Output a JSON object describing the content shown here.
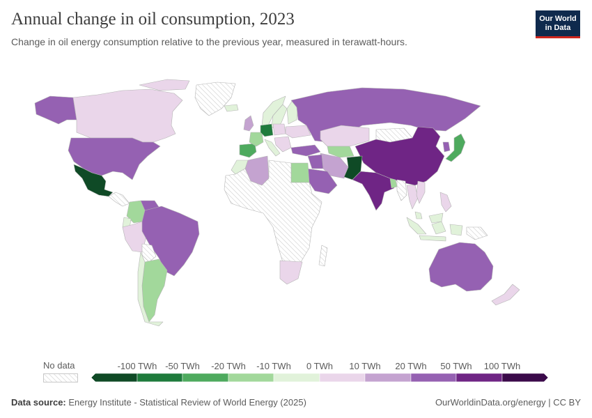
{
  "header": {
    "title": "Annual change in oil consumption, 2023",
    "subtitle": "Change in oil energy consumption relative to the previous year, measured in terawatt-hours."
  },
  "logo": {
    "line1": "Our World",
    "line2": "in Data"
  },
  "legend": {
    "no_data_label": "No data",
    "tick_labels": [
      "-100 TWh",
      "-50 TWh",
      "-20 TWh",
      "-10 TWh",
      "0 TWh",
      "10 TWh",
      "20 TWh",
      "50 TWh",
      "100 TWh"
    ],
    "colors": [
      "#0f4a26",
      "#1e7b3c",
      "#4eaa5e",
      "#a2d89b",
      "#e1f2da",
      "#ead6ea",
      "#c4a3d0",
      "#9561b2",
      "#6f2585",
      "#3b0a4a"
    ]
  },
  "footer": {
    "source_label": "Data source:",
    "source_text": "Energy Institute - Statistical Review of World Energy (2025)",
    "url_text": "OurWorldinData.org/energy | CC BY"
  },
  "colors": {
    "title": "#3d3d3d",
    "text": "#5b5b5b",
    "logo_bg": "#0f2a4d",
    "logo_accent": "#ce261e",
    "border": "#b4b4b4"
  },
  "map_regions": [
    {
      "name": "alaska",
      "category": "50 TWh"
    },
    {
      "name": "canada",
      "category": "10 TWh"
    },
    {
      "name": "greenland",
      "category": "No data"
    },
    {
      "name": "united-states",
      "category": "50 TWh"
    },
    {
      "name": "mexico",
      "category": "-100 TWh"
    },
    {
      "name": "central-america",
      "category": "No data"
    },
    {
      "name": "colombia",
      "category": "-10 TWh"
    },
    {
      "name": "venezuela",
      "category": "50 TWh"
    },
    {
      "name": "ecuador",
      "category": "0 TWh"
    },
    {
      "name": "peru",
      "category": "10 TWh"
    },
    {
      "name": "brazil",
      "category": "50 TWh"
    },
    {
      "name": "bolivia",
      "category": "No data"
    },
    {
      "name": "argentina",
      "category": "-10 TWh"
    },
    {
      "name": "chile",
      "category": "0 TWh"
    },
    {
      "name": "iceland",
      "category": "0 TWh"
    },
    {
      "name": "uk",
      "category": "20 TWh"
    },
    {
      "name": "norway",
      "category": "0 TWh"
    },
    {
      "name": "sweden",
      "category": "0 TWh"
    },
    {
      "name": "finland",
      "category": "0 TWh"
    },
    {
      "name": "spain",
      "category": "-20 TWh"
    },
    {
      "name": "france",
      "category": "-10 TWh"
    },
    {
      "name": "germany",
      "category": "-50 TWh"
    },
    {
      "name": "poland",
      "category": "10 TWh"
    },
    {
      "name": "italy",
      "category": "0 TWh"
    },
    {
      "name": "balkans",
      "category": "10 TWh"
    },
    {
      "name": "ukraine",
      "category": "10 TWh"
    },
    {
      "name": "turkey",
      "category": "50 TWh"
    },
    {
      "name": "russia",
      "category": "50 TWh"
    },
    {
      "name": "kazakhstan",
      "category": "10 TWh"
    },
    {
      "name": "central-asia",
      "category": "-10 TWh"
    },
    {
      "name": "mongolia",
      "category": "No data"
    },
    {
      "name": "china",
      "category": "100 TWh"
    },
    {
      "name": "korea",
      "category": "50 TWh"
    },
    {
      "name": "japan",
      "category": "-20 TWh"
    },
    {
      "name": "iran",
      "category": "20 TWh"
    },
    {
      "name": "iraq",
      "category": "50 TWh"
    },
    {
      "name": "saudi-arabia",
      "category": "50 TWh"
    },
    {
      "name": "pakistan",
      "category": "-100 TWh"
    },
    {
      "name": "india",
      "category": "100 TWh"
    },
    {
      "name": "bangladesh",
      "category": "-10 TWh"
    },
    {
      "name": "myanmar",
      "category": "No data"
    },
    {
      "name": "thailand",
      "category": "10 TWh"
    },
    {
      "name": "vietnam",
      "category": "10 TWh"
    },
    {
      "name": "philippines",
      "category": "10 TWh"
    },
    {
      "name": "malaysia",
      "category": "0 TWh"
    },
    {
      "name": "indonesia",
      "category": "0 TWh"
    },
    {
      "name": "papua-new-guinea",
      "category": "No data"
    },
    {
      "name": "australia",
      "category": "50 TWh"
    },
    {
      "name": "new-zealand",
      "category": "10 TWh"
    },
    {
      "name": "algeria",
      "category": "20 TWh"
    },
    {
      "name": "morocco",
      "category": "0 TWh"
    },
    {
      "name": "egypt",
      "category": "-10 TWh"
    },
    {
      "name": "africa-other",
      "category": "No data"
    },
    {
      "name": "south-africa",
      "category": "10 TWh"
    },
    {
      "name": "madagascar",
      "category": "No data"
    }
  ]
}
